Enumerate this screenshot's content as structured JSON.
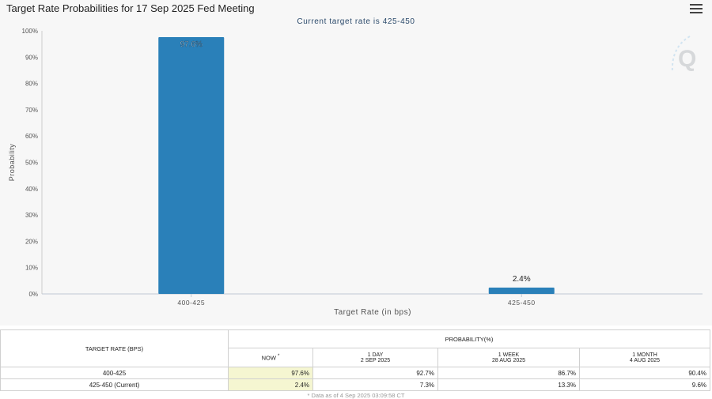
{
  "chart_title": "Target Rate Probabilities for 17 Sep 2025 Fed Meeting",
  "icons": {
    "menu": "hamburger-menu-icon",
    "watermark": "q-logo-watermark"
  },
  "colors": {
    "bar": "#2a80b9",
    "panel": "#f7f7f7",
    "now_highlight": "#f5f6d1"
  },
  "chart_data": {
    "type": "bar",
    "title": "Target Rate Probabilities for 17 Sep 2025 Fed Meeting",
    "subtitle": "Current target rate is 425-450",
    "xlabel": "Target Rate (in bps)",
    "ylabel": "Probability",
    "categories": [
      "400-425",
      "425-450"
    ],
    "values": [
      97.6,
      2.4
    ],
    "data_labels": [
      "97.6%",
      "2.4%"
    ],
    "ylim": [
      0,
      100
    ],
    "yticks": [
      0,
      10,
      20,
      30,
      40,
      50,
      60,
      70,
      80,
      90,
      100
    ],
    "ytick_labels": [
      "0%",
      "10%",
      "20%",
      "30%",
      "40%",
      "50%",
      "60%",
      "70%",
      "80%",
      "90%",
      "100%"
    ],
    "grid": false,
    "legend": "none"
  },
  "table": {
    "rate_header": "TARGET RATE (BPS)",
    "prob_header": "PROBABILITY(%)",
    "columns": [
      {
        "label": "NOW",
        "marker": "*",
        "date": ""
      },
      {
        "label": "1 DAY",
        "marker": "",
        "date": "2 SEP 2025"
      },
      {
        "label": "1 WEEK",
        "marker": "",
        "date": "28 AUG 2025"
      },
      {
        "label": "1 MONTH",
        "marker": "",
        "date": "4 AUG 2025"
      }
    ],
    "rows": [
      {
        "rate": "400-425",
        "values": [
          "97.6%",
          "92.7%",
          "86.7%",
          "90.4%"
        ]
      },
      {
        "rate": "425-450 (Current)",
        "values": [
          "2.4%",
          "7.3%",
          "13.3%",
          "9.6%"
        ]
      }
    ],
    "footnote": "* Data as of 4 Sep 2025 03:09:58 CT"
  }
}
